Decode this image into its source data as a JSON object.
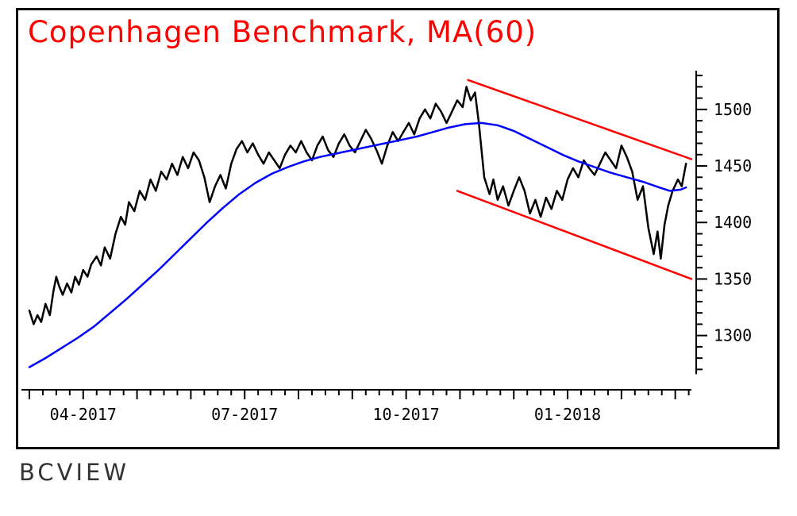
{
  "watermark": "BCVIEW",
  "colors": {
    "title": "#ff0000",
    "price": "#000000",
    "ma": "#0000ff",
    "trendline": "#ff0000",
    "axis": "#000000",
    "tick_text": "#000000",
    "watermark": "#333333",
    "background": "#ffffff",
    "frame_border": "#000000"
  },
  "chart_data": {
    "type": "line",
    "title": "Copenhagen Benchmark, MA(60)",
    "xlabel": "",
    "ylabel": "",
    "x_unit": "months since 2017-03",
    "xlim": [
      0,
      12.3
    ],
    "ylim": [
      1252,
      1535
    ],
    "y_axis_range": [
      1270,
      1530
    ],
    "y_ticks_major": [
      1300,
      1350,
      1400,
      1450,
      1500
    ],
    "y_minor_tick_step": 10,
    "x_ticks": [
      {
        "x": 1,
        "label": "04-2017"
      },
      {
        "x": 4,
        "label": "07-2017"
      },
      {
        "x": 7,
        "label": "10-2017"
      },
      {
        "x": 10,
        "label": "01-2018"
      }
    ],
    "x_minor_tick_step": 0.25,
    "grid": false,
    "legend": "none",
    "series": [
      {
        "name": "copenhagen-benchmark-price",
        "color": "#000000",
        "width": 2.5,
        "points": [
          [
            0.0,
            1322
          ],
          [
            0.08,
            1310
          ],
          [
            0.15,
            1318
          ],
          [
            0.22,
            1312
          ],
          [
            0.3,
            1328
          ],
          [
            0.38,
            1318
          ],
          [
            0.45,
            1340
          ],
          [
            0.5,
            1352
          ],
          [
            0.55,
            1344
          ],
          [
            0.62,
            1336
          ],
          [
            0.7,
            1346
          ],
          [
            0.78,
            1338
          ],
          [
            0.85,
            1352
          ],
          [
            0.92,
            1345
          ],
          [
            1.0,
            1358
          ],
          [
            1.08,
            1352
          ],
          [
            1.15,
            1363
          ],
          [
            1.25,
            1370
          ],
          [
            1.33,
            1362
          ],
          [
            1.4,
            1378
          ],
          [
            1.5,
            1368
          ],
          [
            1.6,
            1390
          ],
          [
            1.7,
            1405
          ],
          [
            1.78,
            1398
          ],
          [
            1.85,
            1418
          ],
          [
            1.95,
            1410
          ],
          [
            2.05,
            1428
          ],
          [
            2.15,
            1420
          ],
          [
            2.25,
            1438
          ],
          [
            2.35,
            1428
          ],
          [
            2.45,
            1445
          ],
          [
            2.55,
            1438
          ],
          [
            2.65,
            1452
          ],
          [
            2.75,
            1442
          ],
          [
            2.85,
            1458
          ],
          [
            2.95,
            1448
          ],
          [
            3.05,
            1462
          ],
          [
            3.15,
            1455
          ],
          [
            3.25,
            1440
          ],
          [
            3.35,
            1418
          ],
          [
            3.45,
            1432
          ],
          [
            3.55,
            1442
          ],
          [
            3.65,
            1430
          ],
          [
            3.75,
            1452
          ],
          [
            3.85,
            1465
          ],
          [
            3.95,
            1472
          ],
          [
            4.05,
            1462
          ],
          [
            4.15,
            1470
          ],
          [
            4.25,
            1460
          ],
          [
            4.35,
            1452
          ],
          [
            4.45,
            1462
          ],
          [
            4.55,
            1455
          ],
          [
            4.65,
            1448
          ],
          [
            4.75,
            1460
          ],
          [
            4.85,
            1468
          ],
          [
            4.95,
            1462
          ],
          [
            5.05,
            1472
          ],
          [
            5.15,
            1462
          ],
          [
            5.25,
            1455
          ],
          [
            5.35,
            1468
          ],
          [
            5.45,
            1476
          ],
          [
            5.55,
            1464
          ],
          [
            5.65,
            1458
          ],
          [
            5.75,
            1470
          ],
          [
            5.85,
            1478
          ],
          [
            5.95,
            1468
          ],
          [
            6.05,
            1462
          ],
          [
            6.15,
            1472
          ],
          [
            6.25,
            1482
          ],
          [
            6.35,
            1474
          ],
          [
            6.45,
            1464
          ],
          [
            6.55,
            1452
          ],
          [
            6.65,
            1468
          ],
          [
            6.75,
            1480
          ],
          [
            6.85,
            1472
          ],
          [
            6.95,
            1480
          ],
          [
            7.05,
            1488
          ],
          [
            7.15,
            1478
          ],
          [
            7.25,
            1492
          ],
          [
            7.35,
            1500
          ],
          [
            7.45,
            1492
          ],
          [
            7.55,
            1505
          ],
          [
            7.65,
            1498
          ],
          [
            7.75,
            1488
          ],
          [
            7.85,
            1498
          ],
          [
            7.95,
            1508
          ],
          [
            8.05,
            1502
          ],
          [
            8.12,
            1520
          ],
          [
            8.2,
            1508
          ],
          [
            8.28,
            1515
          ],
          [
            8.35,
            1488
          ],
          [
            8.45,
            1440
          ],
          [
            8.55,
            1425
          ],
          [
            8.62,
            1438
          ],
          [
            8.7,
            1420
          ],
          [
            8.8,
            1432
          ],
          [
            8.9,
            1415
          ],
          [
            9.0,
            1428
          ],
          [
            9.1,
            1440
          ],
          [
            9.2,
            1428
          ],
          [
            9.3,
            1408
          ],
          [
            9.4,
            1420
          ],
          [
            9.5,
            1405
          ],
          [
            9.6,
            1422
          ],
          [
            9.7,
            1412
          ],
          [
            9.8,
            1428
          ],
          [
            9.9,
            1420
          ],
          [
            10.0,
            1438
          ],
          [
            10.1,
            1448
          ],
          [
            10.2,
            1440
          ],
          [
            10.3,
            1455
          ],
          [
            10.4,
            1448
          ],
          [
            10.5,
            1442
          ],
          [
            10.6,
            1452
          ],
          [
            10.7,
            1462
          ],
          [
            10.8,
            1455
          ],
          [
            10.9,
            1448
          ],
          [
            11.0,
            1468
          ],
          [
            11.1,
            1458
          ],
          [
            11.2,
            1445
          ],
          [
            11.3,
            1420
          ],
          [
            11.4,
            1432
          ],
          [
            11.5,
            1395
          ],
          [
            11.6,
            1372
          ],
          [
            11.67,
            1392
          ],
          [
            11.73,
            1368
          ],
          [
            11.8,
            1398
          ],
          [
            11.87,
            1415
          ],
          [
            11.95,
            1428
          ],
          [
            12.05,
            1438
          ],
          [
            12.12,
            1432
          ],
          [
            12.2,
            1452
          ]
        ]
      },
      {
        "name": "ma-60",
        "color": "#0000ff",
        "width": 2.5,
        "points": [
          [
            0.0,
            1272
          ],
          [
            0.3,
            1280
          ],
          [
            0.6,
            1289
          ],
          [
            0.9,
            1298
          ],
          [
            1.2,
            1308
          ],
          [
            1.5,
            1320
          ],
          [
            1.8,
            1332
          ],
          [
            2.1,
            1345
          ],
          [
            2.4,
            1358
          ],
          [
            2.7,
            1372
          ],
          [
            3.0,
            1386
          ],
          [
            3.3,
            1400
          ],
          [
            3.6,
            1413
          ],
          [
            3.9,
            1425
          ],
          [
            4.2,
            1435
          ],
          [
            4.5,
            1443
          ],
          [
            4.8,
            1449
          ],
          [
            5.1,
            1454
          ],
          [
            5.4,
            1458
          ],
          [
            5.7,
            1461
          ],
          [
            6.0,
            1464
          ],
          [
            6.3,
            1467
          ],
          [
            6.6,
            1470
          ],
          [
            6.9,
            1473
          ],
          [
            7.2,
            1476
          ],
          [
            7.5,
            1480
          ],
          [
            7.8,
            1484
          ],
          [
            8.1,
            1487
          ],
          [
            8.4,
            1488
          ],
          [
            8.7,
            1486
          ],
          [
            9.0,
            1481
          ],
          [
            9.3,
            1474
          ],
          [
            9.6,
            1467
          ],
          [
            9.9,
            1460
          ],
          [
            10.2,
            1454
          ],
          [
            10.5,
            1449
          ],
          [
            10.8,
            1444
          ],
          [
            11.1,
            1440
          ],
          [
            11.4,
            1436
          ],
          [
            11.7,
            1431
          ],
          [
            11.9,
            1428
          ],
          [
            12.1,
            1429
          ],
          [
            12.2,
            1431
          ]
        ]
      },
      {
        "name": "upper-trendline",
        "color": "#ff0000",
        "width": 2.5,
        "points": [
          [
            8.15,
            1526
          ],
          [
            12.3,
            1456
          ]
        ]
      },
      {
        "name": "lower-trendline",
        "color": "#ff0000",
        "width": 2.5,
        "points": [
          [
            7.95,
            1428
          ],
          [
            12.3,
            1350
          ]
        ]
      }
    ]
  }
}
